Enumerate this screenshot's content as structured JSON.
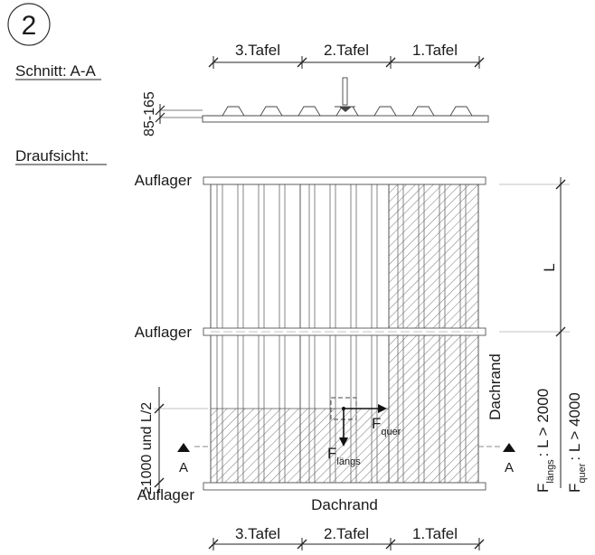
{
  "step_number": "2",
  "section": {
    "label": "Schnitt: A-A",
    "height_dimension": "85-165"
  },
  "plan": {
    "label": "Draufsicht:",
    "support_labels": [
      "Auflager",
      "Auflager",
      "Auflager"
    ],
    "eave_label": "Dachrand",
    "eave_side_label": "Dachrand",
    "span_label": "L",
    "edge_zone_dimension": "≥1000 und L/2",
    "section_marker": "A"
  },
  "panels": {
    "top": [
      "3.Tafel",
      "2.Tafel",
      "1.Tafel"
    ],
    "bottom": [
      "3.Tafel",
      "2.Tafel",
      "1.Tafel"
    ]
  },
  "forces": {
    "longitudinal": {
      "symbol": "F",
      "subscript": "längs",
      "condition": ": L > 2000"
    },
    "transverse": {
      "symbol": "F",
      "subscript": "quer",
      "condition": ": L > 4000"
    }
  }
}
